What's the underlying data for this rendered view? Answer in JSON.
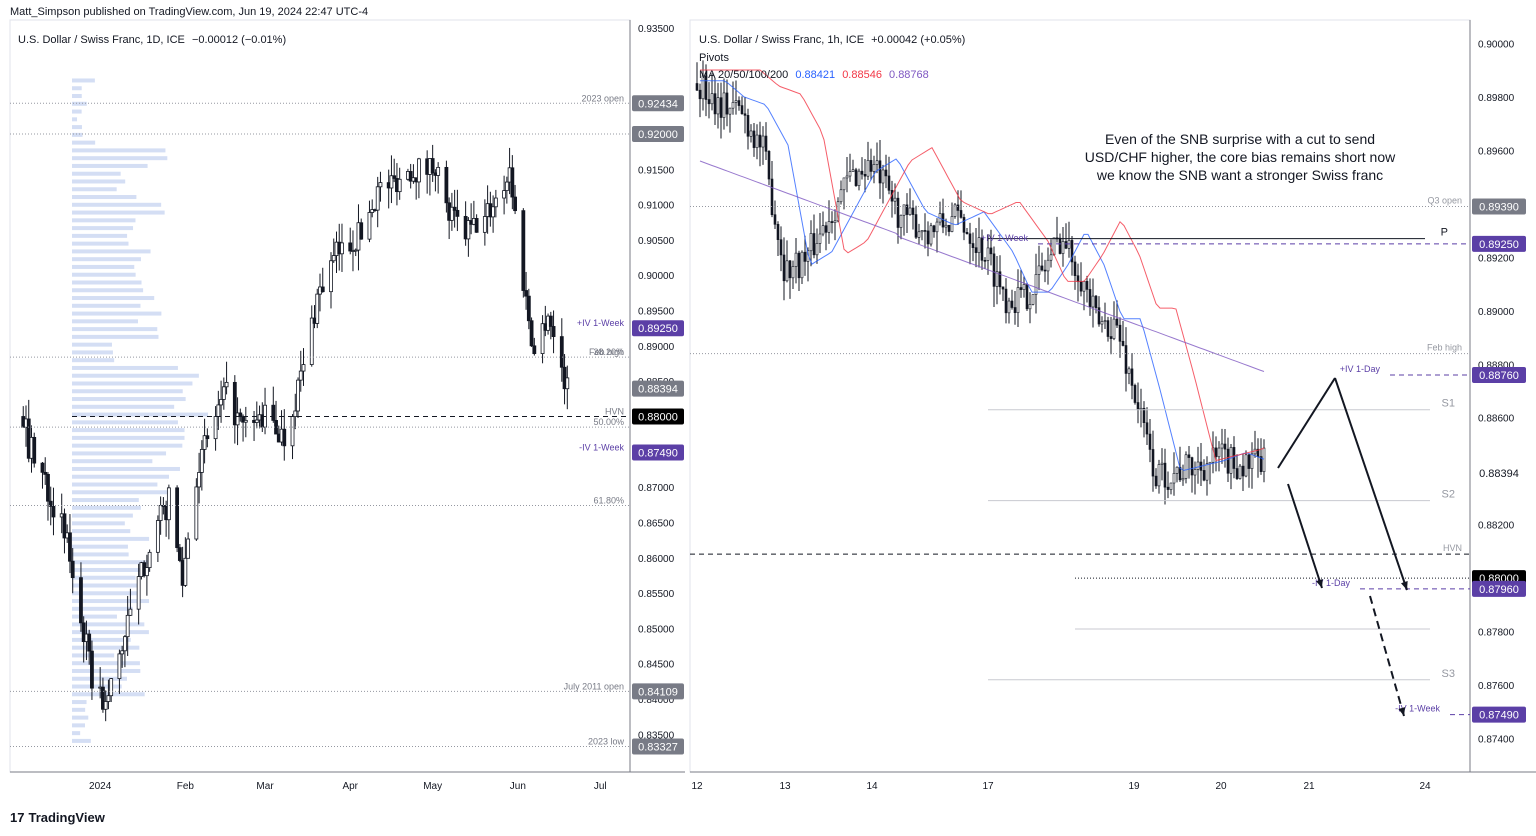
{
  "publisher": "Matt_Simpson published on TradingView.com, Jun 19, 2024 22:47 UTC-4",
  "left_title": "U.S. Dollar / Swiss Franc, 1D, ICE",
  "left_change": "−0.00012 (−0.01%)",
  "right_title": "U.S. Dollar / Swiss Franc, 1h, ICE",
  "right_change": "+0.00042 (+0.05%)",
  "right_pivots": "Pivots",
  "right_ma_label": "MA 20/50/100/200",
  "right_ma_values": [
    "0.88421",
    "0.88546",
    "0.88768"
  ],
  "note_lines": [
    "Even of the SNB surprise with a cut to send",
    "USD/CHF higher, the core bias remains short now",
    "we know the SNB want a stronger Swiss franc"
  ],
  "brand": "TradingView",
  "colors": {
    "up": "#131722",
    "down": "#131722",
    "ma20": "#2962ff",
    "ma50": "#f23645",
    "ma100": "#7e57c2",
    "label_purple": "#5b3fa6",
    "label_black": "#000000",
    "label_gray": "#787b86",
    "volume_profile": "#c5d3f0"
  },
  "chart_data": [
    {
      "type": "candlestick",
      "title": "U.S. Dollar / Swiss Franc, 1D, ICE",
      "ylim": [
        0.8325,
        0.935
      ],
      "y_ticks": [
        "0.93500",
        "0.92000",
        "0.91500",
        "0.91000",
        "0.90500",
        "0.90000",
        "0.89500",
        "0.89000",
        "0.88500",
        "0.87500",
        "0.87000",
        "0.86500",
        "0.86000",
        "0.85500",
        "0.85000",
        "0.84500",
        "0.84000",
        "0.83500"
      ],
      "x_labels": [
        "2024",
        "Feb",
        "Mar",
        "Apr",
        "May",
        "Jun",
        "Jul"
      ],
      "key_path": [
        [
          "2023-12-04",
          0.88
        ],
        [
          "2023-12-06",
          0.876
        ],
        [
          "2023-12-12",
          0.871
        ],
        [
          "2023-12-20",
          0.862
        ],
        [
          "2023-12-29",
          0.843
        ],
        [
          "2024-01-03",
          0.839
        ],
        [
          "2024-01-12",
          0.852
        ],
        [
          "2024-01-19",
          0.862
        ],
        [
          "2024-01-26",
          0.868
        ],
        [
          "2024-01-31",
          0.857
        ],
        [
          "2024-02-05",
          0.872
        ],
        [
          "2024-02-12",
          0.88
        ],
        [
          "2024-02-16",
          0.883
        ],
        [
          "2024-02-22",
          0.878
        ],
        [
          "2024-03-01",
          0.88
        ],
        [
          "2024-03-08",
          0.877
        ],
        [
          "2024-03-15",
          0.887
        ],
        [
          "2024-03-20",
          0.897
        ],
        [
          "2024-03-27",
          0.903
        ],
        [
          "2024-04-05",
          0.906
        ],
        [
          "2024-04-11",
          0.912
        ],
        [
          "2024-04-16",
          0.913
        ],
        [
          "2024-04-23",
          0.915
        ],
        [
          "2024-04-29",
          0.915
        ],
        [
          "2024-05-02",
          0.916
        ],
        [
          "2024-05-06",
          0.909
        ],
        [
          "2024-05-13",
          0.906
        ],
        [
          "2024-05-20",
          0.908
        ],
        [
          "2024-05-27",
          0.913
        ],
        [
          "2024-05-29",
          0.915
        ],
        [
          "2024-06-03",
          0.899
        ],
        [
          "2024-06-07",
          0.889
        ],
        [
          "2024-06-12",
          0.895
        ],
        [
          "2024-06-14",
          0.891
        ],
        [
          "2024-06-17",
          0.887
        ],
        [
          "2024-06-19",
          0.8839
        ]
      ],
      "levels": [
        {
          "label": "2023 open",
          "value": 0.92434,
          "tag": "0.92434",
          "style": "dotted"
        },
        {
          "label": "",
          "value": 0.92,
          "tag": "0.92000",
          "style": "dotted"
        },
        {
          "label": "+IV 1-Week",
          "value": 0.8925,
          "tag": "0.89250",
          "style": "none"
        },
        {
          "label": "Feb high",
          "value": 0.8884,
          "tag": "",
          "style": "dotted"
        },
        {
          "label": "38.20%",
          "value": 0.8884,
          "tag": "",
          "style": "none"
        },
        {
          "label": "",
          "value": 0.88394,
          "tag": "0.88394",
          "style": "none"
        },
        {
          "label": "HVN",
          "value": 0.88,
          "tag": "0.88000",
          "style": "dashed"
        },
        {
          "label": "50.00%",
          "value": 0.8785,
          "tag": "",
          "style": "dotted"
        },
        {
          "label": "-IV 1-Week",
          "value": 0.8749,
          "tag": "0.87490",
          "style": "none"
        },
        {
          "label": "61.80%",
          "value": 0.8674,
          "tag": "",
          "style": "dotted"
        },
        {
          "label": "July 2011 open",
          "value": 0.84109,
          "tag": "0.84109",
          "style": "dotted"
        },
        {
          "label": "2023 low",
          "value": 0.83327,
          "tag": "0.83327",
          "style": "dotted"
        }
      ]
    },
    {
      "type": "candlestick",
      "title": "U.S. Dollar / Swiss Franc, 1h, ICE",
      "ylim": [
        0.8735,
        0.9005
      ],
      "y_ticks": [
        "0.90000",
        "0.89800",
        "0.89600",
        "0.89200",
        "0.89000",
        "0.88800",
        "0.88600",
        "0.88200",
        "0.87800",
        "0.87600",
        "0.87400"
      ],
      "x_labels": [
        "12",
        "13",
        "14",
        "17",
        "19",
        "20",
        "21",
        "24"
      ],
      "key_path": [
        [
          "2024-06-12 00:00",
          0.8985
        ],
        [
          "2024-06-12 06:00",
          0.8978
        ],
        [
          "2024-06-12 12:00",
          0.8975
        ],
        [
          "2024-06-12 18:00",
          0.896
        ],
        [
          "2024-06-13 00:00",
          0.8915
        ],
        [
          "2024-06-13 06:00",
          0.892
        ],
        [
          "2024-06-13 12:00",
          0.8935
        ],
        [
          "2024-06-13 18:00",
          0.895
        ],
        [
          "2024-06-14 00:00",
          0.8955
        ],
        [
          "2024-06-14 06:00",
          0.8935
        ],
        [
          "2024-06-14 12:00",
          0.893
        ],
        [
          "2024-06-14 18:00",
          0.8935
        ],
        [
          "2024-06-17 00:00",
          0.892
        ],
        [
          "2024-06-17 06:00",
          0.8905
        ],
        [
          "2024-06-17 12:00",
          0.8905
        ],
        [
          "2024-06-17 18:00",
          0.8915
        ],
        [
          "2024-06-18 00:00",
          0.8928
        ],
        [
          "2024-06-18 06:00",
          0.8915
        ],
        [
          "2024-06-18 12:00",
          0.8895
        ],
        [
          "2024-06-18 18:00",
          0.8895
        ],
        [
          "2024-06-19 00:00",
          0.887
        ],
        [
          "2024-06-19 06:00",
          0.8838
        ],
        [
          "2024-06-19 12:00",
          0.884
        ],
        [
          "2024-06-19 18:00",
          0.8842
        ],
        [
          "2024-06-20 00:00",
          0.8845
        ],
        [
          "2024-06-20 06:00",
          0.8842
        ],
        [
          "2024-06-20 12:00",
          0.8843
        ],
        [
          "2024-06-20 18:00",
          0.8839
        ]
      ],
      "ma": [
        {
          "name": "MA 20",
          "value": 0.88421
        },
        {
          "name": "MA 50",
          "value": 0.88546
        },
        {
          "name": "MA 100",
          "value": 0.88768
        }
      ],
      "levels": [
        {
          "label": "Q3 open",
          "value": 0.8939,
          "tag": "0.89390",
          "style": "dotted"
        },
        {
          "label": "P",
          "value": 0.8927,
          "tag": "",
          "style": "solid"
        },
        {
          "label": "+IV 1-Week",
          "value": 0.8925,
          "tag": "0.89250",
          "style": "dashed"
        },
        {
          "label": "Feb high",
          "value": 0.8884,
          "tag": "",
          "style": "dotted"
        },
        {
          "label": "+IV 1-Day",
          "value": 0.8876,
          "tag": "0.88760",
          "style": "dashed"
        },
        {
          "label": "S1",
          "value": 0.8863,
          "tag": "",
          "style": "solid"
        },
        {
          "label": "",
          "value": 0.88394,
          "tag": "0.88394",
          "style": "none"
        },
        {
          "label": "S2",
          "value": 0.8829,
          "tag": "",
          "style": "solid"
        },
        {
          "label": "HVN",
          "value": 0.8809,
          "tag": "",
          "style": "dashed"
        },
        {
          "label": "",
          "value": 0.88,
          "tag": "0.88000",
          "style": "dotted"
        },
        {
          "label": "-IV 1-Day",
          "value": 0.8796,
          "tag": "0.87960",
          "style": "dashed"
        },
        {
          "label": "",
          "value": 0.8781,
          "tag": "",
          "style": "solid"
        },
        {
          "label": "S3",
          "value": 0.8762,
          "tag": "",
          "style": "solid"
        },
        {
          "label": "-IV 1-Week",
          "value": 0.8749,
          "tag": "0.87490",
          "style": "dashed"
        }
      ]
    }
  ]
}
